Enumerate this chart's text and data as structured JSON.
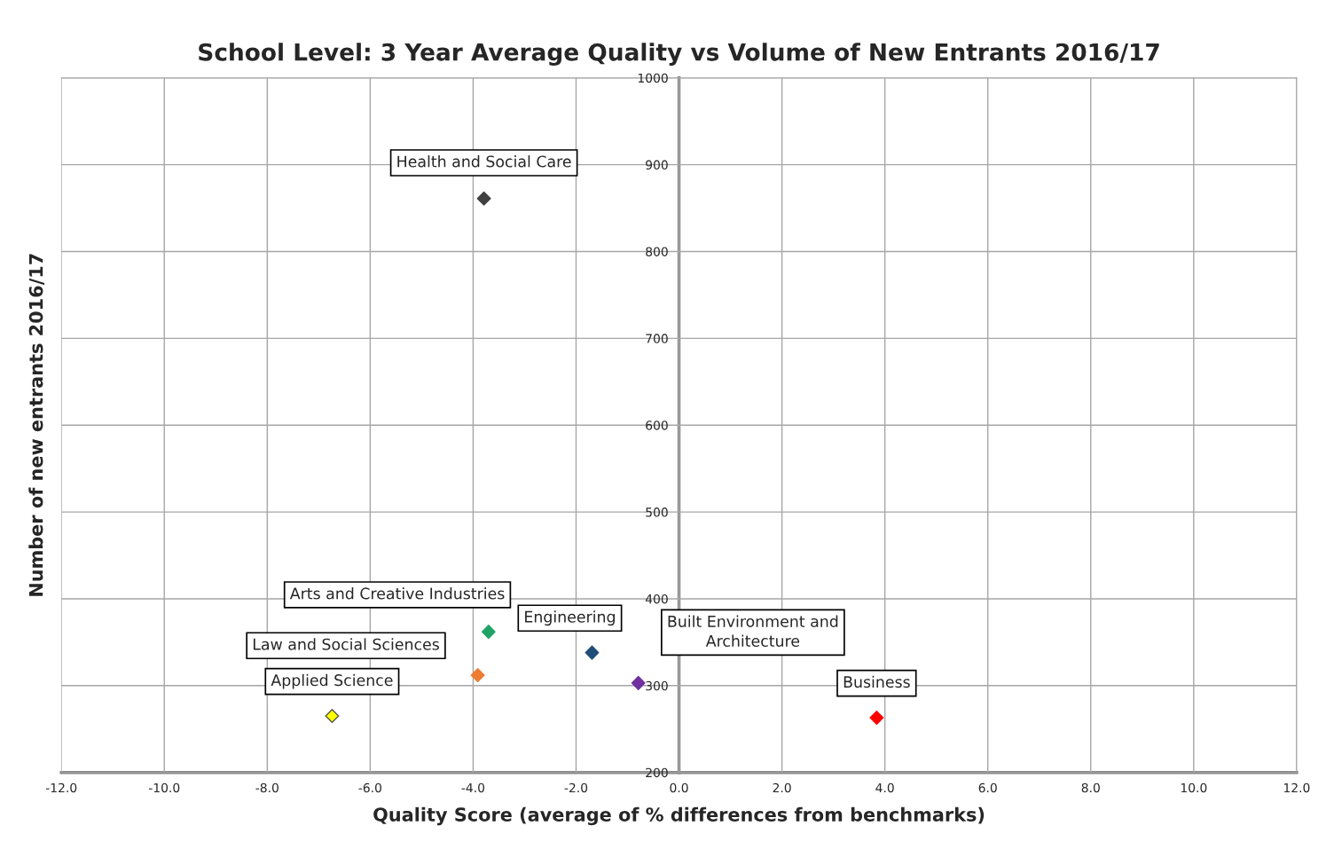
{
  "chart_data": {
    "type": "scatter",
    "title": "School Level: 3 Year Average Quality vs Volume of New Entrants 2016/17",
    "xlabel": "Quality Score (average of % differences from benchmarks)",
    "ylabel": "Number of new entrants 2016/17",
    "series": [
      {
        "name": "Health and Social Care",
        "color": "#404040",
        "x": [
          -3.79
        ],
        "values": [
          861
        ]
      },
      {
        "name": "Arts and Creative Industries",
        "color": "#21a366",
        "x": [
          -3.7
        ],
        "values": [
          362
        ]
      },
      {
        "name": "Engineering",
        "color": "#1f4e79",
        "x": [
          -1.69
        ],
        "values": [
          338
        ]
      },
      {
        "name": "Law and Social Sciences",
        "color": "#ed7d31",
        "x": [
          -3.91
        ],
        "values": [
          312
        ]
      },
      {
        "name": "Built Environment and\nArchitecture",
        "color": "#7030a0",
        "x": [
          -0.79
        ],
        "values": [
          303
        ]
      },
      {
        "name": "Applied Science",
        "color": "#ffff00",
        "x": [
          -6.74
        ],
        "values": [
          265
        ]
      },
      {
        "name": "Business",
        "color": "#ff0000",
        "x": [
          3.84
        ],
        "values": [
          263
        ]
      }
    ],
    "xlim": [
      -12,
      12
    ],
    "ylim": [
      200,
      1000
    ],
    "xticks": [
      {
        "value": -12,
        "label": "-12.0"
      },
      {
        "value": -10,
        "label": "-10.0"
      },
      {
        "value": -8,
        "label": "-8.0"
      },
      {
        "value": -6,
        "label": "-6.0"
      },
      {
        "value": -4,
        "label": "-4.0"
      },
      {
        "value": -2,
        "label": "-2.0"
      },
      {
        "value": 0,
        "label": "0.0"
      },
      {
        "value": 2,
        "label": "2.0"
      },
      {
        "value": 4,
        "label": "4.0"
      },
      {
        "value": 6,
        "label": "6.0"
      },
      {
        "value": 8,
        "label": "8.0"
      },
      {
        "value": 10,
        "label": "10.0"
      },
      {
        "value": 12,
        "label": "12.0"
      }
    ],
    "yticks": [
      200,
      300,
      400,
      500,
      600,
      700,
      800,
      900,
      1000
    ],
    "grid": true,
    "marker": "diamond",
    "legend": false
  }
}
